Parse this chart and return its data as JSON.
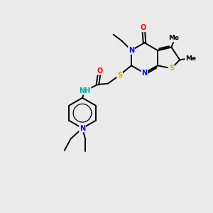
{
  "bg_color": "#ebebeb",
  "bond_color": "#000000",
  "atom_colors": {
    "N": "#0000ff",
    "O": "#ff0000",
    "S": "#ccaa00",
    "C": "#000000",
    "H": "#aaaaaa",
    "NH": "#00aaaa"
  },
  "lw": 1.4,
  "fs": 7.0,
  "fs_small": 6.5
}
